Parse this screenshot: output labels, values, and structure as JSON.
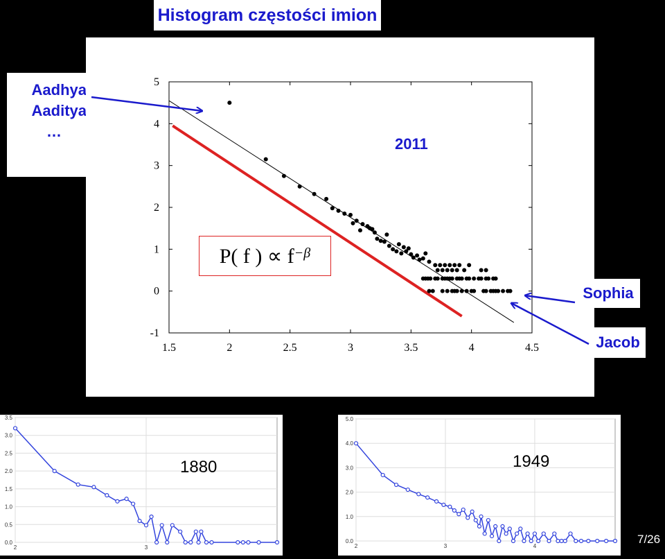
{
  "slide": {
    "title": "Histogram częstości imion",
    "page_number": "7/26",
    "names_top": [
      "Aadhya",
      "Aaditya",
      "…"
    ],
    "name_sophia": "Sophia",
    "name_jacob": "Jacob",
    "label_2011": "2011",
    "formula": {
      "base": "P( f ) ∝ f",
      "exponent": "−β"
    },
    "colors": {
      "annotation_blue": "#1a1acc",
      "fit_red": "#dd2222",
      "series_blue": "#3344dd"
    }
  },
  "chart_data": [
    {
      "type": "scatter",
      "title": "2011",
      "xlim": [
        1.5,
        4.5
      ],
      "ylim": [
        -1,
        5
      ],
      "x_ticks": [
        "1.5",
        "2",
        "2.5",
        "3",
        "3.5",
        "4",
        "4.5"
      ],
      "y_ticks": [
        "-1",
        "0",
        "1",
        "2",
        "3",
        "4",
        "5"
      ],
      "points": [
        [
          2.0,
          4.5
        ],
        [
          2.3,
          3.15
        ],
        [
          2.45,
          2.75
        ],
        [
          2.58,
          2.5
        ],
        [
          2.7,
          2.32
        ],
        [
          2.8,
          2.2
        ],
        [
          2.85,
          1.98
        ],
        [
          2.9,
          1.92
        ],
        [
          2.95,
          1.85
        ],
        [
          3.0,
          1.82
        ],
        [
          3.02,
          1.62
        ],
        [
          3.05,
          1.68
        ],
        [
          3.08,
          1.45
        ],
        [
          3.1,
          1.6
        ],
        [
          3.14,
          1.55
        ],
        [
          3.16,
          1.5
        ],
        [
          3.18,
          1.48
        ],
        [
          3.2,
          1.4
        ],
        [
          3.22,
          1.25
        ],
        [
          3.25,
          1.2
        ],
        [
          3.28,
          1.18
        ],
        [
          3.3,
          1.35
        ],
        [
          3.32,
          1.08
        ],
        [
          3.35,
          1.0
        ],
        [
          3.38,
          0.95
        ],
        [
          3.4,
          1.12
        ],
        [
          3.42,
          0.9
        ],
        [
          3.44,
          1.05
        ],
        [
          3.46,
          0.95
        ],
        [
          3.48,
          1.02
        ],
        [
          3.5,
          0.88
        ],
        [
          3.52,
          0.8
        ],
        [
          3.55,
          0.85
        ],
        [
          3.57,
          0.75
        ],
        [
          3.6,
          0.78
        ],
        [
          3.62,
          0.9
        ],
        [
          3.65,
          0.7
        ],
        [
          3.6,
          0.3
        ],
        [
          3.62,
          0.3
        ],
        [
          3.64,
          0.3
        ],
        [
          3.66,
          0.3
        ],
        [
          3.7,
          0.3
        ],
        [
          3.72,
          0.3
        ],
        [
          3.76,
          0.3
        ],
        [
          3.78,
          0.3
        ],
        [
          3.8,
          0.3
        ],
        [
          3.82,
          0.3
        ],
        [
          3.84,
          0.3
        ],
        [
          3.88,
          0.3
        ],
        [
          3.9,
          0.3
        ],
        [
          3.92,
          0.3
        ],
        [
          3.96,
          0.3
        ],
        [
          3.98,
          0.3
        ],
        [
          4.02,
          0.3
        ],
        [
          4.06,
          0.3
        ],
        [
          4.08,
          0.3
        ],
        [
          4.12,
          0.3
        ],
        [
          4.14,
          0.3
        ],
        [
          4.18,
          0.3
        ],
        [
          4.2,
          0.3
        ],
        [
          3.72,
          0.5
        ],
        [
          3.76,
          0.5
        ],
        [
          3.8,
          0.5
        ],
        [
          3.84,
          0.5
        ],
        [
          3.88,
          0.5
        ],
        [
          3.94,
          0.5
        ],
        [
          4.08,
          0.5
        ],
        [
          4.12,
          0.5
        ],
        [
          3.7,
          0.62
        ],
        [
          3.74,
          0.62
        ],
        [
          3.78,
          0.62
        ],
        [
          3.82,
          0.62
        ],
        [
          3.86,
          0.62
        ],
        [
          3.9,
          0.62
        ],
        [
          3.98,
          0.62
        ],
        [
          3.65,
          0.0
        ],
        [
          3.68,
          0.0
        ],
        [
          3.76,
          0.0
        ],
        [
          3.8,
          0.0
        ],
        [
          3.84,
          0.0
        ],
        [
          3.86,
          0.0
        ],
        [
          3.88,
          0.0
        ],
        [
          3.92,
          0.0
        ],
        [
          3.96,
          0.0
        ],
        [
          4.0,
          0.0
        ],
        [
          4.02,
          0.0
        ],
        [
          4.1,
          0.0
        ],
        [
          4.12,
          0.0
        ],
        [
          4.16,
          0.0
        ],
        [
          4.18,
          0.0
        ],
        [
          4.2,
          0.0
        ],
        [
          4.22,
          0.0
        ],
        [
          4.26,
          0.0
        ],
        [
          4.3,
          0.0
        ],
        [
          4.32,
          0.0
        ]
      ],
      "fit_line": {
        "from": [
          1.5,
          4.55
        ],
        "to": [
          4.35,
          -0.75
        ]
      },
      "red_line": {
        "from": [
          1.53,
          3.95
        ],
        "to": [
          3.92,
          -0.6
        ]
      }
    },
    {
      "type": "line",
      "title": "1880",
      "xlim": [
        2.0,
        4.0
      ],
      "ylim": [
        0.0,
        3.5
      ],
      "y_ticks": [
        "0.0",
        "0.5",
        "1.0",
        "1.5",
        "2.0",
        "2.5",
        "3.0",
        "3.5"
      ],
      "x_ticks": [
        "2",
        "3"
      ],
      "series": [
        {
          "values": [
            [
              2.0,
              3.2
            ],
            [
              2.3,
              2.0
            ],
            [
              2.48,
              1.62
            ],
            [
              2.6,
              1.55
            ],
            [
              2.7,
              1.32
            ],
            [
              2.78,
              1.15
            ],
            [
              2.85,
              1.22
            ],
            [
              2.9,
              1.08
            ],
            [
              2.95,
              0.6
            ],
            [
              3.0,
              0.48
            ],
            [
              3.04,
              0.72
            ],
            [
              3.08,
              0.0
            ],
            [
              3.12,
              0.48
            ],
            [
              3.16,
              0.0
            ],
            [
              3.2,
              0.48
            ],
            [
              3.26,
              0.3
            ],
            [
              3.3,
              0.0
            ],
            [
              3.34,
              0.0
            ],
            [
              3.38,
              0.3
            ],
            [
              3.4,
              0.0
            ],
            [
              3.42,
              0.3
            ],
            [
              3.46,
              0.0
            ],
            [
              3.5,
              0.0
            ],
            [
              3.7,
              0.0
            ],
            [
              3.74,
              0.0
            ],
            [
              3.78,
              0.0
            ],
            [
              3.86,
              0.0
            ],
            [
              4.0,
              0.0
            ]
          ]
        }
      ]
    },
    {
      "type": "line",
      "title": "1949",
      "xlim": [
        2.0,
        4.9
      ],
      "ylim": [
        0.0,
        5.0
      ],
      "y_ticks": [
        "0.0",
        "1.0",
        "2.0",
        "3.0",
        "4.0",
        "5.0"
      ],
      "x_ticks": [
        "2",
        "3",
        "4"
      ],
      "series": [
        {
          "values": [
            [
              2.0,
              4.0
            ],
            [
              2.3,
              2.7
            ],
            [
              2.45,
              2.3
            ],
            [
              2.58,
              2.1
            ],
            [
              2.7,
              1.92
            ],
            [
              2.8,
              1.78
            ],
            [
              2.9,
              1.62
            ],
            [
              2.98,
              1.48
            ],
            [
              3.05,
              1.4
            ],
            [
              3.1,
              1.25
            ],
            [
              3.15,
              1.1
            ],
            [
              3.2,
              1.28
            ],
            [
              3.25,
              0.95
            ],
            [
              3.3,
              1.2
            ],
            [
              3.34,
              0.85
            ],
            [
              3.38,
              0.6
            ],
            [
              3.4,
              1.0
            ],
            [
              3.44,
              0.3
            ],
            [
              3.48,
              0.85
            ],
            [
              3.52,
              0.2
            ],
            [
              3.56,
              0.6
            ],
            [
              3.6,
              0.0
            ],
            [
              3.64,
              0.6
            ],
            [
              3.68,
              0.3
            ],
            [
              3.72,
              0.5
            ],
            [
              3.76,
              0.0
            ],
            [
              3.8,
              0.3
            ],
            [
              3.84,
              0.5
            ],
            [
              3.88,
              0.0
            ],
            [
              3.92,
              0.3
            ],
            [
              3.96,
              0.0
            ],
            [
              4.0,
              0.3
            ],
            [
              4.04,
              0.0
            ],
            [
              4.1,
              0.3
            ],
            [
              4.16,
              0.0
            ],
            [
              4.22,
              0.3
            ],
            [
              4.26,
              0.0
            ],
            [
              4.3,
              0.0
            ],
            [
              4.34,
              0.0
            ],
            [
              4.4,
              0.3
            ],
            [
              4.46,
              0.0
            ],
            [
              4.52,
              0.0
            ],
            [
              4.6,
              0.0
            ],
            [
              4.7,
              0.0
            ],
            [
              4.8,
              0.0
            ],
            [
              4.9,
              0.0
            ]
          ]
        }
      ]
    }
  ]
}
